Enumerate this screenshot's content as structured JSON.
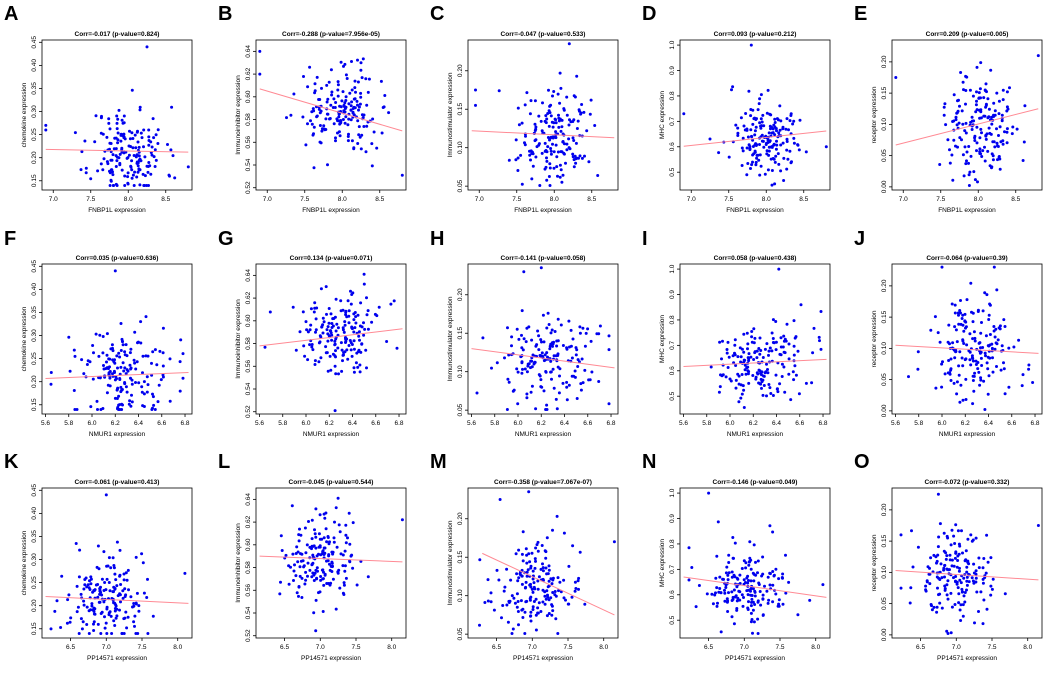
{
  "figure": {
    "point_color": "#0000ee",
    "fit_color": "#ff8a94"
  },
  "chart_data": [
    {
      "panel": "A",
      "type": "scatter",
      "title": "Corr=-0.017 (p-value=0.824)",
      "xlabel": "FNBP1L expression",
      "ylabel": "chemokine expression",
      "xlim": [
        6.85,
        8.85
      ],
      "ylim": [
        0.13,
        0.455
      ],
      "xticks": [
        7.0,
        7.5,
        8.0,
        8.5
      ],
      "xtick_labels": [
        "7.0",
        "7.5",
        "8.0",
        "8.5"
      ],
      "yticks": [
        0.15,
        0.2,
        0.25,
        0.3,
        0.35,
        0.4,
        0.45
      ],
      "ytick_labels": [
        "0.15",
        "0.20",
        "0.25",
        "0.30",
        "0.35",
        "0.40",
        "0.45"
      ],
      "xmean": 8.0,
      "xsd": 0.25,
      "ymean": 0.21,
      "ysd": 0.05,
      "fit": [
        [
          6.9,
          0.218
        ],
        [
          8.8,
          0.212
        ]
      ],
      "n": 180,
      "seed": 11,
      "extra_points": [
        [
          6.9,
          0.27
        ],
        [
          6.9,
          0.26
        ],
        [
          8.25,
          0.44
        ],
        [
          8.8,
          0.18
        ]
      ]
    },
    {
      "panel": "B",
      "type": "scatter",
      "title": "Corr=-0.288 (p-value=7.956e-05)",
      "xlabel": "FNBP1L expression",
      "ylabel": "Immunoinhibitor expression",
      "xlim": [
        6.85,
        8.85
      ],
      "ylim": [
        0.518,
        0.65
      ],
      "xticks": [
        7.0,
        7.5,
        8.0,
        8.5
      ],
      "xtick_labels": [
        "7.0",
        "7.5",
        "8.0",
        "8.5"
      ],
      "yticks": [
        0.52,
        0.54,
        0.56,
        0.58,
        0.6,
        0.62,
        0.64
      ],
      "ytick_labels": [
        "0.52",
        "0.54",
        "0.56",
        "0.58",
        "0.60",
        "0.62",
        "0.64"
      ],
      "xmean": 8.0,
      "xsd": 0.25,
      "ymean": 0.588,
      "ysd": 0.018,
      "fit": [
        [
          6.9,
          0.607
        ],
        [
          8.8,
          0.57
        ]
      ],
      "n": 180,
      "seed": 22,
      "extra_points": [
        [
          6.9,
          0.64
        ],
        [
          6.9,
          0.62
        ],
        [
          8.8,
          0.531
        ]
      ]
    },
    {
      "panel": "C",
      "type": "scatter",
      "title": "Corr=-0.047 (p-value=0.533)",
      "xlabel": "FNBP1L expression",
      "ylabel": "Immunostimulator expression",
      "xlim": [
        6.85,
        8.85
      ],
      "ylim": [
        0.045,
        0.24
      ],
      "xticks": [
        7.0,
        7.5,
        8.0,
        8.5
      ],
      "xtick_labels": [
        "7.0",
        "7.5",
        "8.0",
        "8.5"
      ],
      "yticks": [
        0.05,
        0.1,
        0.15,
        0.2
      ],
      "ytick_labels": [
        "0.05",
        "0.10",
        "0.15",
        "0.20"
      ],
      "xmean": 8.0,
      "xsd": 0.25,
      "ymean": 0.115,
      "ysd": 0.03,
      "fit": [
        [
          6.9,
          0.122
        ],
        [
          8.8,
          0.113
        ]
      ],
      "n": 180,
      "seed": 33,
      "extra_points": [
        [
          6.95,
          0.175
        ],
        [
          6.95,
          0.155
        ],
        [
          8.2,
          0.235
        ]
      ]
    },
    {
      "panel": "D",
      "type": "scatter",
      "title": "Corr=0.093 (p-value=0.212)",
      "xlabel": "FNBP1L expression",
      "ylabel": "MHC expression",
      "xlim": [
        6.85,
        8.85
      ],
      "ylim": [
        0.43,
        1.02
      ],
      "xticks": [
        7.0,
        7.5,
        8.0,
        8.5
      ],
      "xtick_labels": [
        "7.0",
        "7.5",
        "8.0",
        "8.5"
      ],
      "yticks": [
        0.5,
        0.6,
        0.7,
        0.8,
        0.9,
        1.0
      ],
      "ytick_labels": [
        "0.5",
        "0.6",
        "0.7",
        "0.8",
        "0.9",
        "1.0"
      ],
      "xmean": 8.0,
      "xsd": 0.25,
      "ymean": 0.63,
      "ysd": 0.08,
      "fit": [
        [
          6.9,
          0.602
        ],
        [
          8.8,
          0.662
        ]
      ],
      "n": 180,
      "seed": 44,
      "extra_points": [
        [
          6.9,
          0.73
        ],
        [
          7.8,
          1.0
        ],
        [
          8.8,
          0.6
        ]
      ]
    },
    {
      "panel": "E",
      "type": "scatter",
      "title": "Corr=0.209 (p-value=0.005)",
      "xlabel": "FNBP1L expression",
      "ylabel": "receptor expression",
      "xlim": [
        6.85,
        8.85
      ],
      "ylim": [
        -0.005,
        0.235
      ],
      "xticks": [
        7.0,
        7.5,
        8.0,
        8.5
      ],
      "xtick_labels": [
        "7.0",
        "7.5",
        "8.0",
        "8.5"
      ],
      "yticks": [
        0.0,
        0.05,
        0.1,
        0.15,
        0.2
      ],
      "ytick_labels": [
        "0.00",
        "0.05",
        "0.10",
        "0.15",
        "0.20"
      ],
      "xmean": 8.0,
      "xsd": 0.25,
      "ymean": 0.095,
      "ysd": 0.04,
      "fit": [
        [
          6.9,
          0.067
        ],
        [
          8.8,
          0.125
        ]
      ],
      "n": 180,
      "seed": 55,
      "extra_points": [
        [
          6.9,
          0.175
        ],
        [
          8.8,
          0.21
        ]
      ]
    },
    {
      "panel": "F",
      "type": "scatter",
      "title": "Corr=0.035 (p-value=0.636)",
      "xlabel": "NMUR1 expression",
      "ylabel": "chemokine expression",
      "xlim": [
        5.57,
        6.86
      ],
      "ylim": [
        0.13,
        0.455
      ],
      "xticks": [
        5.6,
        5.8,
        6.0,
        6.2,
        6.4,
        6.6,
        6.8
      ],
      "xtick_labels": [
        "5.6",
        "5.8",
        "6.0",
        "6.2",
        "6.4",
        "6.6",
        "6.8"
      ],
      "yticks": [
        0.15,
        0.2,
        0.25,
        0.3,
        0.35,
        0.4,
        0.45
      ],
      "ytick_labels": [
        "0.15",
        "0.20",
        "0.25",
        "0.30",
        "0.35",
        "0.40",
        "0.45"
      ],
      "xmean": 6.28,
      "xsd": 0.2,
      "ymean": 0.21,
      "ysd": 0.05,
      "fit": [
        [
          5.6,
          0.207
        ],
        [
          6.83,
          0.22
        ]
      ],
      "n": 180,
      "seed": 66,
      "extra_points": [
        [
          6.2,
          0.44
        ],
        [
          5.65,
          0.22
        ]
      ]
    },
    {
      "panel": "G",
      "type": "scatter",
      "title": "Corr=0.134 (p-value=0.071)",
      "xlabel": "NMUR1 expression",
      "ylabel": "Immunoinhibitor expression",
      "xlim": [
        5.57,
        6.86
      ],
      "ylim": [
        0.518,
        0.65
      ],
      "xticks": [
        5.6,
        5.8,
        6.0,
        6.2,
        6.4,
        6.6,
        6.8
      ],
      "xtick_labels": [
        "5.6",
        "5.8",
        "6.0",
        "6.2",
        "6.4",
        "6.6",
        "6.8"
      ],
      "yticks": [
        0.52,
        0.54,
        0.56,
        0.58,
        0.6,
        0.62,
        0.64
      ],
      "ytick_labels": [
        "0.52",
        "0.54",
        "0.56",
        "0.58",
        "0.60",
        "0.62",
        "0.64"
      ],
      "xmean": 6.28,
      "xsd": 0.2,
      "ymean": 0.588,
      "ysd": 0.018,
      "fit": [
        [
          5.6,
          0.578
        ],
        [
          6.83,
          0.593
        ]
      ],
      "n": 180,
      "seed": 77,
      "extra_points": [
        [
          6.5,
          0.641
        ],
        [
          6.25,
          0.521
        ]
      ]
    },
    {
      "panel": "H",
      "type": "scatter",
      "title": "Corr=-0.141 (p-value=0.058)",
      "xlabel": "NMUR1 expression",
      "ylabel": "Immunostimulator expression",
      "xlim": [
        5.57,
        6.86
      ],
      "ylim": [
        0.045,
        0.24
      ],
      "xticks": [
        5.6,
        5.8,
        6.0,
        6.2,
        6.4,
        6.6,
        6.8
      ],
      "xtick_labels": [
        "5.6",
        "5.8",
        "6.0",
        "6.2",
        "6.4",
        "6.6",
        "6.8"
      ],
      "yticks": [
        0.05,
        0.1,
        0.15,
        0.2
      ],
      "ytick_labels": [
        "0.05",
        "0.10",
        "0.15",
        "0.20"
      ],
      "xmean": 6.28,
      "xsd": 0.2,
      "ymean": 0.115,
      "ysd": 0.03,
      "fit": [
        [
          5.6,
          0.13
        ],
        [
          6.83,
          0.105
        ]
      ],
      "n": 180,
      "seed": 88,
      "extra_points": [
        [
          6.2,
          0.235
        ],
        [
          6.05,
          0.23
        ]
      ]
    },
    {
      "panel": "I",
      "type": "scatter",
      "title": "Corr=0.058 (p-value=0.438)",
      "xlabel": "NMUR1 expression",
      "ylabel": "MHC expression",
      "xlim": [
        5.57,
        6.86
      ],
      "ylim": [
        0.43,
        1.02
      ],
      "xticks": [
        5.6,
        5.8,
        6.0,
        6.2,
        6.4,
        6.6,
        6.8
      ],
      "xtick_labels": [
        "5.6",
        "5.8",
        "6.0",
        "6.2",
        "6.4",
        "6.6",
        "6.8"
      ],
      "yticks": [
        0.5,
        0.6,
        0.7,
        0.8,
        0.9,
        1.0
      ],
      "ytick_labels": [
        "0.5",
        "0.6",
        "0.7",
        "0.8",
        "0.9",
        "1.0"
      ],
      "xmean": 6.28,
      "xsd": 0.2,
      "ymean": 0.63,
      "ysd": 0.08,
      "fit": [
        [
          5.6,
          0.617
        ],
        [
          6.83,
          0.645
        ]
      ],
      "n": 180,
      "seed": 99,
      "extra_points": [
        [
          6.42,
          1.0
        ]
      ]
    },
    {
      "panel": "J",
      "type": "scatter",
      "title": "Corr=-0.064 (p-value=0.39)",
      "xlabel": "NMUR1 expression",
      "ylabel": "receptor expression",
      "xlim": [
        5.57,
        6.86
      ],
      "ylim": [
        -0.005,
        0.235
      ],
      "xticks": [
        5.6,
        5.8,
        6.0,
        6.2,
        6.4,
        6.6,
        6.8
      ],
      "xtick_labels": [
        "5.6",
        "5.8",
        "6.0",
        "6.2",
        "6.4",
        "6.6",
        "6.8"
      ],
      "yticks": [
        0.0,
        0.05,
        0.1,
        0.15,
        0.2
      ],
      "ytick_labels": [
        "0.00",
        "0.05",
        "0.10",
        "0.15",
        "0.20"
      ],
      "xmean": 6.28,
      "xsd": 0.2,
      "ymean": 0.095,
      "ysd": 0.04,
      "fit": [
        [
          5.6,
          0.105
        ],
        [
          6.83,
          0.092
        ]
      ],
      "n": 180,
      "seed": 111,
      "extra_points": [
        [
          6.0,
          0.23
        ],
        [
          6.45,
          0.23
        ]
      ]
    },
    {
      "panel": "K",
      "type": "scatter",
      "title": "Corr=-0.061 (p-value=0.413)",
      "xlabel": "PP14571 expression",
      "ylabel": "chemokine expression",
      "xlim": [
        6.1,
        8.2
      ],
      "ylim": [
        0.13,
        0.455
      ],
      "xticks": [
        6.5,
        7.0,
        7.5,
        8.0
      ],
      "xtick_labels": [
        "6.5",
        "7.0",
        "7.5",
        "8.0"
      ],
      "yticks": [
        0.15,
        0.2,
        0.25,
        0.3,
        0.35,
        0.4,
        0.45
      ],
      "ytick_labels": [
        "0.15",
        "0.20",
        "0.25",
        "0.30",
        "0.35",
        "0.40",
        "0.45"
      ],
      "xmean": 7.0,
      "xsd": 0.27,
      "ymean": 0.21,
      "ysd": 0.05,
      "fit": [
        [
          6.15,
          0.22
        ],
        [
          8.15,
          0.205
        ]
      ],
      "n": 180,
      "seed": 122,
      "extra_points": [
        [
          7.0,
          0.44
        ],
        [
          8.1,
          0.27
        ]
      ]
    },
    {
      "panel": "L",
      "type": "scatter",
      "title": "Corr=-0.045 (p-value=0.544)",
      "xlabel": "PP14571 expression",
      "ylabel": "Immunoinhibitor expression",
      "xlim": [
        6.1,
        8.2
      ],
      "ylim": [
        0.518,
        0.65
      ],
      "xticks": [
        6.5,
        7.0,
        7.5,
        8.0
      ],
      "xtick_labels": [
        "6.5",
        "7.0",
        "7.5",
        "8.0"
      ],
      "yticks": [
        0.52,
        0.54,
        0.56,
        0.58,
        0.6,
        0.62,
        0.64
      ],
      "ytick_labels": [
        "0.52",
        "0.54",
        "0.56",
        "0.58",
        "0.60",
        "0.62",
        "0.64"
      ],
      "xmean": 7.0,
      "xsd": 0.27,
      "ymean": 0.588,
      "ysd": 0.018,
      "fit": [
        [
          6.15,
          0.59
        ],
        [
          8.15,
          0.585
        ]
      ],
      "n": 180,
      "seed": 133,
      "extra_points": [
        [
          7.25,
          0.641
        ],
        [
          8.15,
          0.622
        ]
      ]
    },
    {
      "panel": "M",
      "type": "scatter",
      "title": "Corr=-0.358 (p-value=7.067e-07)",
      "xlabel": "PP14571 expression",
      "ylabel": "Immunostimulator expression",
      "xlim": [
        6.1,
        8.2
      ],
      "ylim": [
        0.045,
        0.24
      ],
      "xticks": [
        6.5,
        7.0,
        7.5,
        8.0
      ],
      "xtick_labels": [
        "6.5",
        "7.0",
        "7.5",
        "8.0"
      ],
      "yticks": [
        0.05,
        0.1,
        0.15,
        0.2
      ],
      "ytick_labels": [
        "0.05",
        "0.10",
        "0.15",
        "0.20"
      ],
      "xmean": 7.0,
      "xsd": 0.27,
      "ymean": 0.115,
      "ysd": 0.03,
      "fit": [
        [
          6.3,
          0.155
        ],
        [
          8.15,
          0.075
        ]
      ],
      "n": 180,
      "seed": 144,
      "extra_points": [
        [
          6.95,
          0.235
        ],
        [
          6.55,
          0.225
        ],
        [
          8.15,
          0.17
        ]
      ]
    },
    {
      "panel": "N",
      "type": "scatter",
      "title": "Corr=-0.146 (p-value=0.049)",
      "xlabel": "PP14571 expression",
      "ylabel": "MHC expression",
      "xlim": [
        6.1,
        8.2
      ],
      "ylim": [
        0.43,
        1.02
      ],
      "xticks": [
        6.5,
        7.0,
        7.5,
        8.0
      ],
      "xtick_labels": [
        "6.5",
        "7.0",
        "7.5",
        "8.0"
      ],
      "yticks": [
        0.5,
        0.6,
        0.7,
        0.8,
        0.9,
        1.0
      ],
      "ytick_labels": [
        "0.5",
        "0.6",
        "0.7",
        "0.8",
        "0.9",
        "1.0"
      ],
      "xmean": 7.0,
      "xsd": 0.27,
      "ymean": 0.63,
      "ysd": 0.08,
      "fit": [
        [
          6.15,
          0.67
        ],
        [
          8.15,
          0.59
        ]
      ],
      "n": 180,
      "seed": 155,
      "extra_points": [
        [
          6.5,
          1.0
        ],
        [
          8.1,
          0.64
        ]
      ]
    },
    {
      "panel": "O",
      "type": "scatter",
      "title": "Corr=-0.072 (p-value=0.332)",
      "xlabel": "PP14571 expression",
      "ylabel": "receptor expression",
      "xlim": [
        6.1,
        8.2
      ],
      "ylim": [
        -0.005,
        0.235
      ],
      "xticks": [
        6.5,
        7.0,
        7.5,
        8.0
      ],
      "xtick_labels": [
        "6.5",
        "7.0",
        "7.5",
        "8.0"
      ],
      "yticks": [
        0.0,
        0.05,
        0.1,
        0.15,
        0.2
      ],
      "ytick_labels": [
        "0.00",
        "0.05",
        "0.10",
        "0.15",
        "0.20"
      ],
      "xmean": 7.0,
      "xsd": 0.27,
      "ymean": 0.095,
      "ysd": 0.04,
      "fit": [
        [
          6.15,
          0.103
        ],
        [
          8.15,
          0.088
        ]
      ],
      "n": 180,
      "seed": 166,
      "extra_points": [
        [
          6.75,
          0.225
        ],
        [
          8.15,
          0.175
        ]
      ]
    }
  ]
}
